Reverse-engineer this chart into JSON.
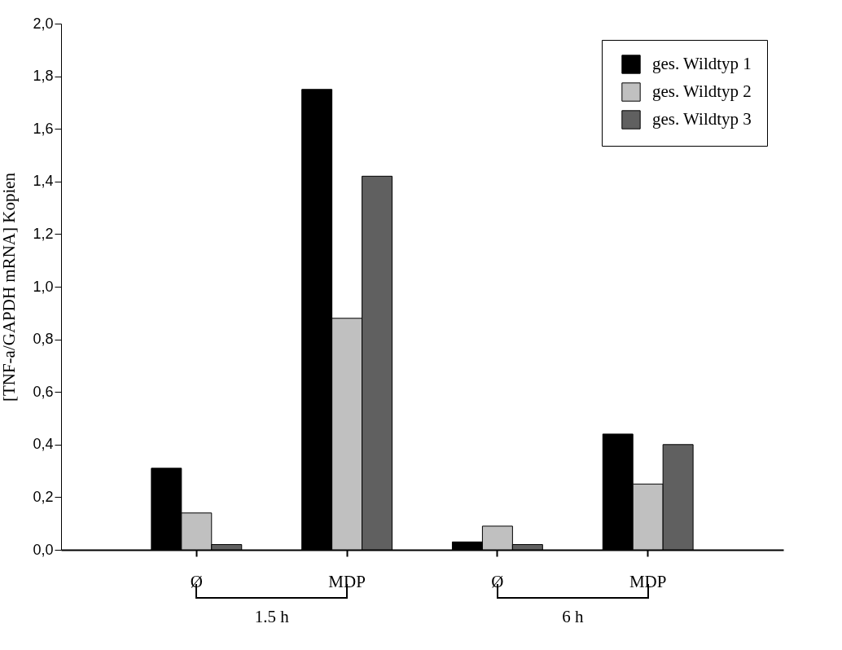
{
  "chart_data": {
    "type": "bar",
    "ylabel": "[TNF-a/GAPDH mRNA] Kopien",
    "categories": [
      "Ø",
      "MDP",
      "Ø",
      "MDP"
    ],
    "series": [
      {
        "name": "ges. Wildtyp 1",
        "color": "#000000",
        "values": [
          0.31,
          1.75,
          0.03,
          0.44
        ]
      },
      {
        "name": "ges. Wildtyp 2",
        "color": "#c0c0c0",
        "values": [
          0.14,
          0.88,
          0.09,
          0.25
        ]
      },
      {
        "name": "ges. Wildtyp 3",
        "color": "#606060",
        "values": [
          0.02,
          1.42,
          0.02,
          0.4
        ]
      }
    ],
    "ylim": [
      0,
      2
    ],
    "yticks": [
      {
        "value": 0,
        "label": "0,0"
      },
      {
        "value": 0.2,
        "label": "0,2"
      },
      {
        "value": 0.4,
        "label": "0,4"
      },
      {
        "value": 0.6,
        "label": "0,6"
      },
      {
        "value": 0.8,
        "label": "0,8"
      },
      {
        "value": 1,
        "label": "1,0"
      },
      {
        "value": 1.2,
        "label": "1,2"
      },
      {
        "value": 1.4,
        "label": "1,4"
      },
      {
        "value": 1.6,
        "label": "1,6"
      },
      {
        "value": 1.8,
        "label": "1,8"
      },
      {
        "value": 2,
        "label": "2,0"
      }
    ],
    "grid": false,
    "legend": "top right",
    "annotations": [
      "1.5 h",
      "6 h"
    ]
  }
}
